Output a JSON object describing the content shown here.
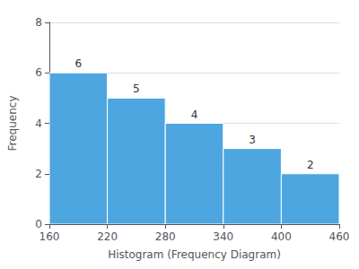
{
  "chart_data": {
    "type": "histogram",
    "bins": [
      160,
      220,
      280,
      340,
      400,
      460
    ],
    "values": [
      6,
      5,
      4,
      3,
      2
    ],
    "color": "#4da6e0",
    "xlabel": "Histogram (Frequency Diagram)",
    "ylabel": "Frequency",
    "xlim": [
      160,
      460
    ],
    "xticks": [
      160,
      220,
      280,
      340,
      400,
      460
    ],
    "ylim": [
      0,
      8
    ],
    "yticks": [
      0,
      2,
      4,
      6,
      8
    ],
    "grid": true,
    "data_labels": true
  }
}
